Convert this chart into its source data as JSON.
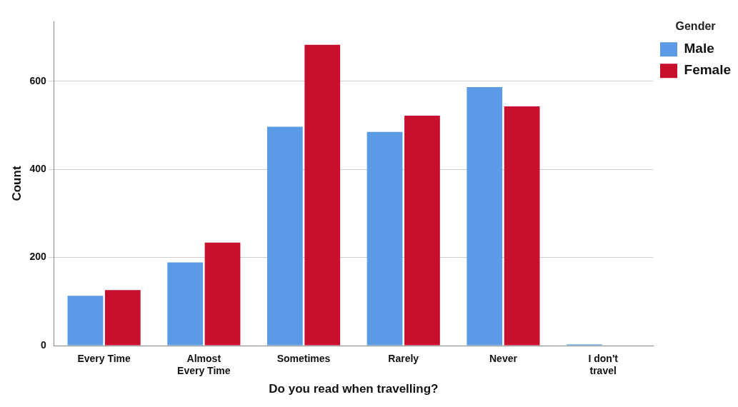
{
  "chart_data": {
    "type": "bar",
    "xlabel": "Do you read when travelling?",
    "ylabel": "Count",
    "legend_title": "Gender",
    "categories": [
      "Every Time",
      "Almost Every Time",
      "Sometimes",
      "Rarely",
      "Never",
      "I don't travel"
    ],
    "series": [
      {
        "name": "Male",
        "color": "#5b9be6",
        "values": [
          113,
          189,
          497,
          485,
          587,
          3
        ]
      },
      {
        "name": "Female",
        "color": "#c8102e",
        "values": [
          126,
          234,
          683,
          522,
          543,
          0
        ]
      }
    ],
    "ylim": [
      0,
      736
    ],
    "yticks": [
      0,
      200,
      400,
      600
    ],
    "grid": "y",
    "legend": "top right"
  }
}
